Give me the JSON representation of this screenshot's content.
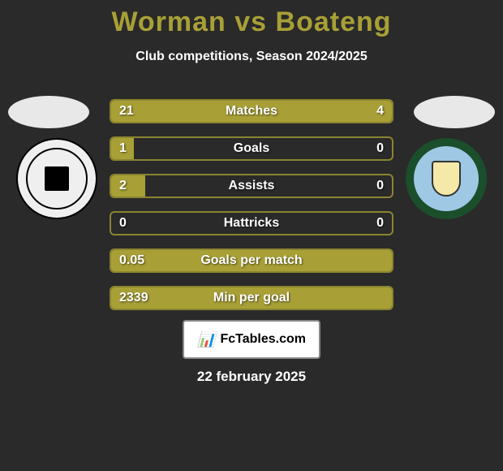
{
  "title_color": "#a8a036",
  "title": "Worman vs Boateng",
  "subtitle": "Club competitions, Season 2024/2025",
  "bar_color": "#a8a036",
  "bar_border_color": "#8b8430",
  "stats": [
    {
      "label": "Matches",
      "left_val": "21",
      "right_val": "4",
      "left_pct": 84,
      "right_pct": 16
    },
    {
      "label": "Goals",
      "left_val": "1",
      "right_val": "0",
      "left_pct": 8,
      "right_pct": 0
    },
    {
      "label": "Assists",
      "left_val": "2",
      "right_val": "0",
      "left_pct": 12,
      "right_pct": 0
    },
    {
      "label": "Hattricks",
      "left_val": "0",
      "right_val": "0",
      "left_pct": 0,
      "right_pct": 0
    },
    {
      "label": "Goals per match",
      "left_val": "0.05",
      "right_val": "",
      "left_pct": 100,
      "right_pct": 0
    },
    {
      "label": "Min per goal",
      "left_val": "2339",
      "right_val": "",
      "left_pct": 100,
      "right_pct": 0
    }
  ],
  "logo_text": "FcTables.com",
  "date": "22 february 2025"
}
